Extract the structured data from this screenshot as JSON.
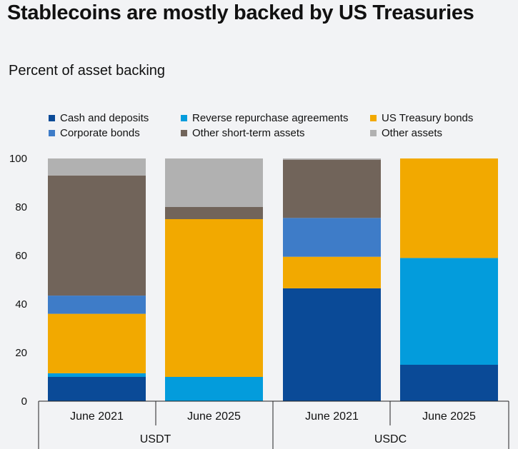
{
  "title": "Stablecoins are mostly backed by US Treasuries",
  "subtitle": "Percent of asset backing",
  "chart_data": {
    "type": "bar",
    "stacked": true,
    "title": "Stablecoins are mostly backed by US Treasuries",
    "ylabel": "Percent of asset backing",
    "ylim": [
      0,
      100
    ],
    "yticks": [
      0,
      20,
      40,
      60,
      80,
      100
    ],
    "grid": false,
    "legend_position": "top",
    "categories": [
      "June 2021",
      "June 2025",
      "June 2021",
      "June 2025"
    ],
    "groups": [
      {
        "label": "USDT",
        "categories": [
          0,
          1
        ]
      },
      {
        "label": "USDC",
        "categories": [
          2,
          3
        ]
      }
    ],
    "series": [
      {
        "name": "Cash and deposits",
        "color": "#0a4a97",
        "values": [
          10,
          0,
          46.5,
          15
        ]
      },
      {
        "name": "Reverse repurchase agreements",
        "color": "#039cdc",
        "values": [
          1.5,
          10,
          0,
          44
        ]
      },
      {
        "name": "US Treasury bonds",
        "color": "#f2a900",
        "values": [
          24.5,
          65,
          13,
          41
        ]
      },
      {
        "name": "Corporate bonds",
        "color": "#3e7cc8",
        "values": [
          7.5,
          0,
          16,
          0
        ]
      },
      {
        "name": "Other short-term assets",
        "color": "#71645a",
        "values": [
          49.5,
          5,
          24,
          0
        ]
      },
      {
        "name": "Other assets",
        "color": "#b1b1b1",
        "values": [
          7,
          20,
          0.5,
          0
        ]
      }
    ]
  }
}
